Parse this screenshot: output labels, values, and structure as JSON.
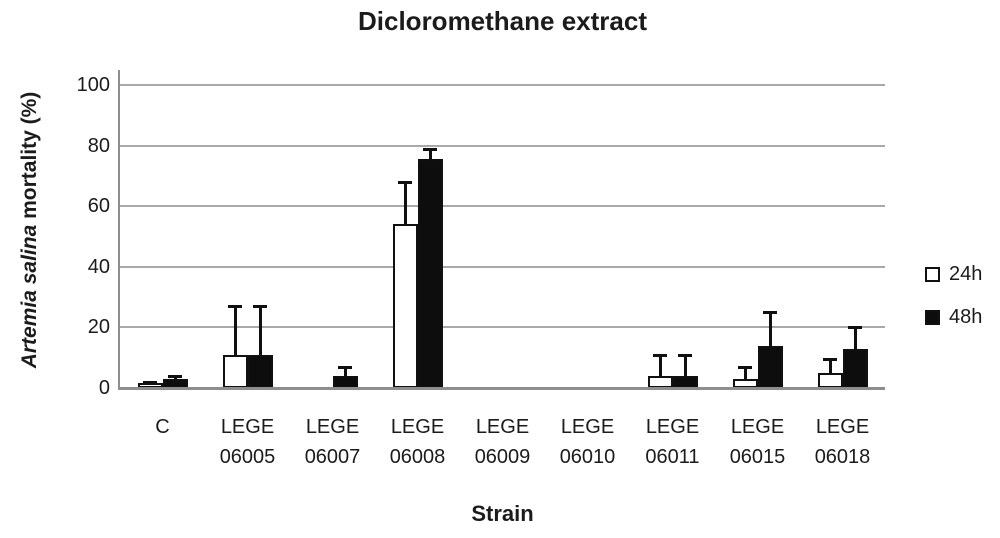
{
  "chart_data": {
    "type": "bar",
    "title": "Dicloromethane extract",
    "xlabel": "Strain",
    "ylabel_italic": "Artemia salina",
    "ylabel_rest": "mortality (%)",
    "ylim": [
      0,
      100
    ],
    "yticks": [
      0,
      20,
      40,
      60,
      80,
      100
    ],
    "grid": true,
    "legend_position": "right",
    "bar_outline_color": "#101010",
    "categories": [
      "C",
      "LEGE 06005",
      "LEGE 06007",
      "LEGE 06008",
      "LEGE 06009",
      "LEGE 06010",
      "LEGE 06011",
      "LEGE 06015",
      "LEGE 06018"
    ],
    "series": [
      {
        "name": "24h",
        "fill": "#ffffff",
        "values": [
          1.5,
          11,
          0,
          54,
          0,
          0,
          4,
          3,
          5
        ],
        "errors": [
          0.5,
          16,
          0,
          14,
          0,
          0,
          7,
          4,
          4.5
        ]
      },
      {
        "name": "48h",
        "fill": "#0d0d0d",
        "values": [
          3,
          11,
          4,
          75.5,
          0,
          0,
          4,
          14,
          13
        ],
        "errors": [
          1,
          16,
          3,
          3.5,
          0,
          0,
          7,
          11,
          7
        ]
      }
    ]
  }
}
